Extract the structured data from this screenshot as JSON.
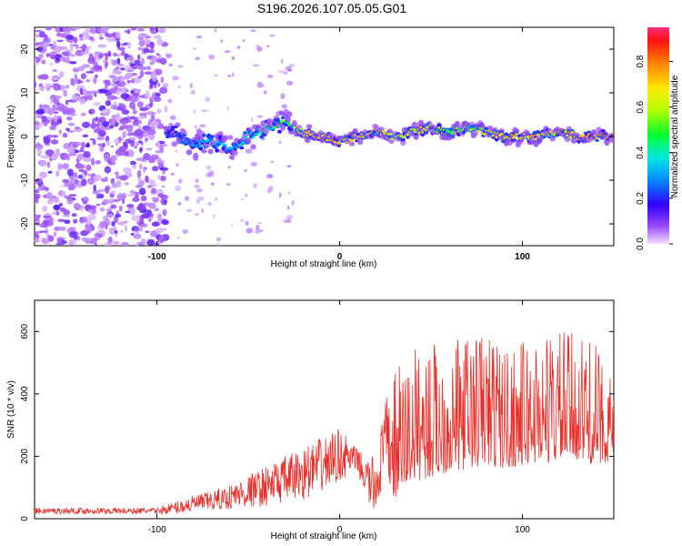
{
  "title": "S196.2026.107.05.05.G01",
  "chart_data": [
    {
      "type": "heatmap",
      "xlabel": "Height of straight line (km)",
      "ylabel": "Frequency (Hz)",
      "xlim": [
        -167,
        150
      ],
      "ylim": [
        -25,
        25
      ],
      "xticks": [
        -100,
        0,
        100
      ],
      "xtick_labels": [
        "-100",
        "0",
        "100"
      ],
      "yticks": [
        -20,
        -10,
        0,
        10,
        20
      ],
      "ytick_labels": [
        "-20",
        "-10",
        "0",
        "10",
        "20"
      ],
      "ridge": {
        "x": [
          -100,
          -90,
          -80,
          -70,
          -60,
          -50,
          -40,
          -30,
          -20,
          -10,
          0,
          10,
          20,
          30,
          40,
          50,
          60,
          70,
          80,
          90,
          100,
          110,
          120,
          130,
          140,
          150
        ],
        "freq": [
          0,
          1,
          -2,
          -1,
          -3,
          0,
          2,
          3,
          1,
          0,
          -1,
          0,
          1,
          0,
          1,
          2,
          1,
          2,
          1,
          0,
          0,
          0,
          1,
          0,
          0,
          0
        ],
        "amplitude": [
          0.05,
          0.25,
          0.35,
          0.35,
          0.4,
          0.45,
          0.5,
          0.55,
          0.75,
          0.85,
          0.85,
          0.8,
          0.75,
          0.7,
          0.75,
          0.7,
          0.6,
          0.65,
          0.7,
          0.8,
          0.8,
          0.75,
          0.8,
          0.85,
          0.85,
          0.85
        ]
      },
      "colorbar": {
        "label": "Normalized spectral amplitude",
        "range": [
          0,
          0.95
        ],
        "ticks": [
          "0.0",
          "0.2",
          "0.4",
          "0.6",
          "0.8"
        ],
        "tick_values": [
          0.0,
          0.2,
          0.4,
          0.6,
          0.8
        ]
      }
    },
    {
      "type": "line",
      "xlabel": "Height of straight line (km)",
      "ylabel": "SNR (10 * v/v)",
      "xlim": [
        -167,
        150
      ],
      "ylim": [
        0,
        700
      ],
      "xticks": [
        -100,
        0,
        100
      ],
      "xtick_labels": [
        "-100",
        "0",
        "100"
      ],
      "yticks": [
        0,
        200,
        400,
        600
      ],
      "ytick_labels": [
        "0",
        "200",
        "400",
        "600"
      ],
      "color": "#e8302a",
      "envelope": {
        "x": [
          -167,
          -100,
          -90,
          -80,
          -70,
          -60,
          -50,
          -40,
          -30,
          -20,
          -10,
          0,
          10,
          15,
          20,
          25,
          30,
          40,
          50,
          60,
          70,
          80,
          90,
          100,
          110,
          120,
          130,
          140,
          150
        ],
        "low": [
          15,
          15,
          15,
          20,
          25,
          30,
          35,
          40,
          50,
          60,
          80,
          120,
          150,
          40,
          10,
          150,
          60,
          120,
          130,
          150,
          160,
          170,
          160,
          170,
          180,
          180,
          190,
          170,
          190
        ],
        "high": [
          35,
          35,
          55,
          75,
          90,
          110,
          140,
          170,
          200,
          230,
          260,
          290,
          220,
          200,
          200,
          380,
          480,
          550,
          580,
          560,
          600,
          620,
          560,
          570,
          600,
          610,
          590,
          560,
          440
        ]
      }
    }
  ]
}
